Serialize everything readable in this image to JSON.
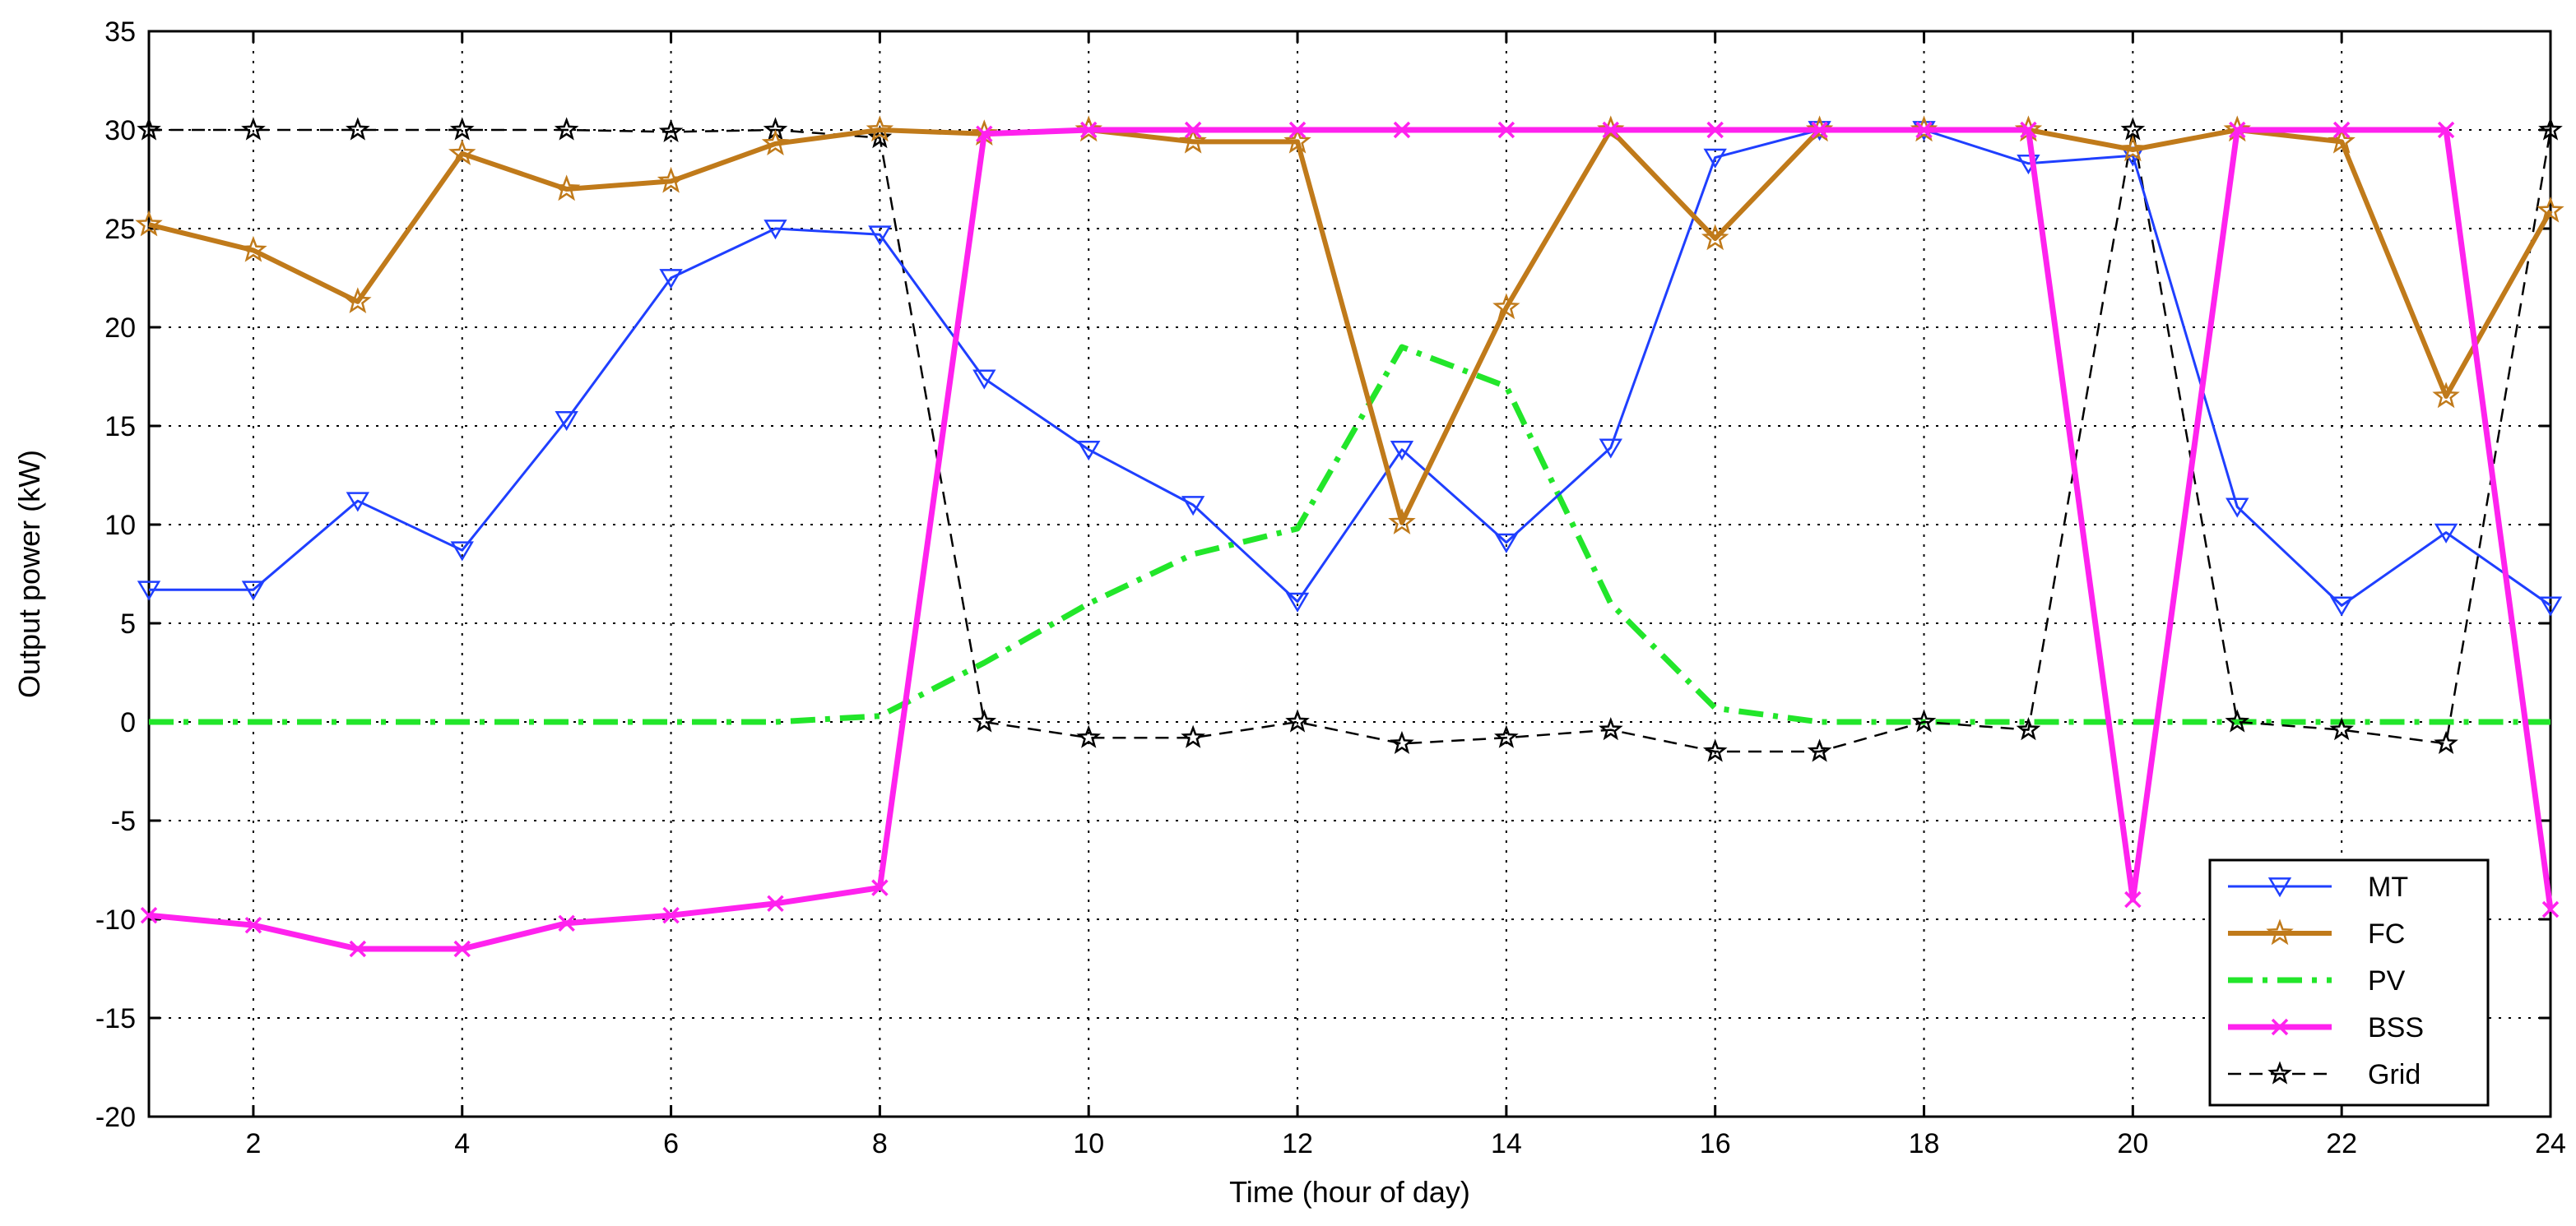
{
  "chart_data": {
    "type": "line",
    "title": "",
    "xlabel": "Time (hour of day)",
    "ylabel": "Output power (kW)",
    "xlim": [
      1,
      24
    ],
    "ylim": [
      -20,
      35
    ],
    "xticks": [
      2,
      4,
      6,
      8,
      10,
      12,
      14,
      16,
      18,
      20,
      22,
      24
    ],
    "yticks": [
      -20,
      -15,
      -10,
      -5,
      0,
      5,
      10,
      15,
      20,
      25,
      30,
      35
    ],
    "grid": true,
    "legend_position": "bottom-right",
    "x": [
      1,
      2,
      3,
      4,
      5,
      6,
      7,
      8,
      9,
      10,
      11,
      12,
      13,
      14,
      15,
      16,
      17,
      18,
      19,
      20,
      21,
      22,
      23,
      24
    ],
    "series": [
      {
        "name": "MT",
        "color": "#1f3fff",
        "marker": "triangle-down",
        "dash": "solid",
        "values": [
          6.7,
          6.7,
          11.2,
          8.7,
          15.3,
          22.5,
          25.0,
          24.7,
          17.4,
          13.8,
          11.0,
          6.1,
          13.8,
          9.1,
          13.9,
          28.6,
          30.0,
          30.0,
          28.3,
          28.7,
          10.9,
          5.9,
          9.6,
          5.9
        ]
      },
      {
        "name": "FC",
        "color": "#c07a1a",
        "marker": "star",
        "dash": "solid",
        "values": [
          25.2,
          23.9,
          21.3,
          28.8,
          27.0,
          27.4,
          29.3,
          30.0,
          29.8,
          30.0,
          29.4,
          29.4,
          10.1,
          21.0,
          30.0,
          24.5,
          30.0,
          30.0,
          30.0,
          29.0,
          30.0,
          29.4,
          16.5,
          25.9
        ]
      },
      {
        "name": "PV",
        "color": "#22e62a",
        "marker": "none",
        "dash": "dashdot",
        "values": [
          0,
          0,
          0,
          0,
          0,
          0,
          0,
          0.3,
          3.0,
          6.0,
          8.5,
          9.8,
          19.0,
          17.0,
          6.0,
          0.7,
          0,
          0,
          0,
          0,
          0,
          0,
          0,
          0
        ]
      },
      {
        "name": "BSS",
        "color": "#ff22ee",
        "marker": "x",
        "dash": "solid",
        "values": [
          -9.8,
          -10.3,
          -11.5,
          -11.5,
          -10.2,
          -9.8,
          -9.2,
          -8.4,
          29.8,
          30.0,
          30.0,
          30.0,
          30.0,
          30.0,
          30.0,
          30.0,
          30.0,
          30.0,
          30.0,
          -9.0,
          30.0,
          30.0,
          30.0,
          -9.5
        ]
      },
      {
        "name": "Grid",
        "color": "#000000",
        "marker": "star",
        "dash": "dashed",
        "values": [
          30.0,
          30.0,
          30.0,
          30.0,
          30.0,
          29.9,
          30.0,
          29.6,
          0,
          -0.8,
          -0.8,
          0,
          -1.1,
          -0.8,
          -0.4,
          -1.5,
          -1.5,
          0,
          -0.4,
          30.0,
          0,
          -0.4,
          -1.1,
          30.0
        ]
      }
    ]
  }
}
